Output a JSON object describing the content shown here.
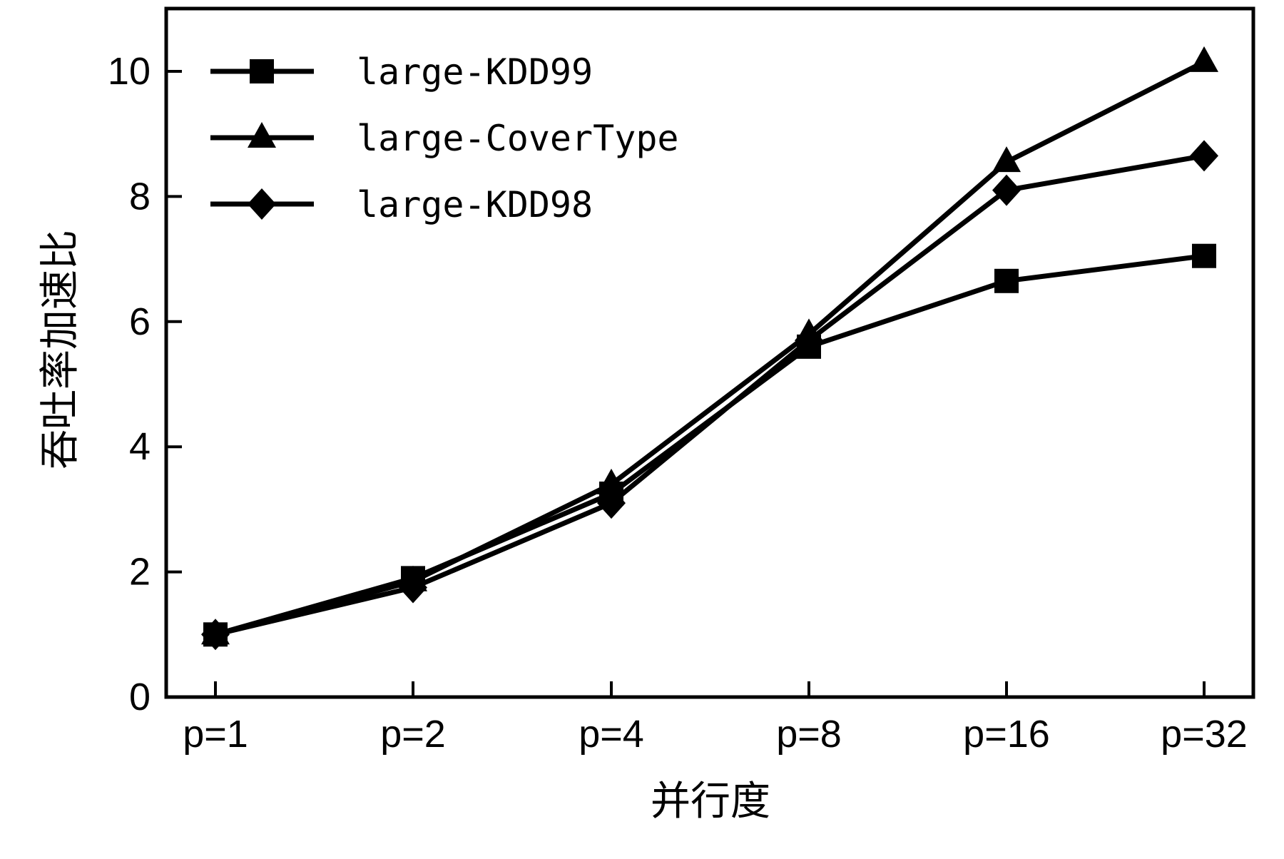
{
  "chart_data": {
    "type": "line",
    "title": "",
    "xlabel": "并行度",
    "ylabel": "吞吐率加速比",
    "categories": [
      "p=1",
      "p=2",
      "p=4",
      "p=8",
      "p=16",
      "p=32"
    ],
    "ylim": [
      0,
      11
    ],
    "yticks": [
      0,
      2,
      4,
      6,
      8,
      10
    ],
    "grid": false,
    "legend_position": "top-left",
    "series": [
      {
        "name": "large-KDD99",
        "marker": "square",
        "values": [
          1.0,
          1.9,
          3.25,
          5.6,
          6.65,
          7.05
        ]
      },
      {
        "name": "large-CoverType",
        "marker": "triangle",
        "values": [
          1.0,
          1.85,
          3.4,
          5.8,
          8.55,
          10.15
        ]
      },
      {
        "name": "large-KDD98",
        "marker": "diamond",
        "values": [
          1.0,
          1.75,
          3.1,
          5.7,
          8.1,
          8.65
        ]
      }
    ],
    "colors": {
      "line": "#000000",
      "background": "#ffffff"
    }
  }
}
